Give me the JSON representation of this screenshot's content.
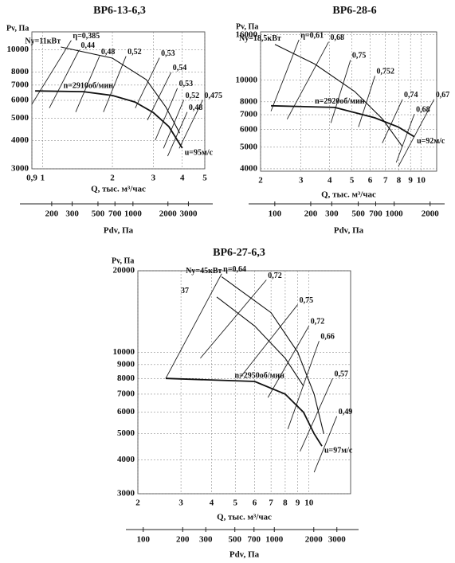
{
  "chart_data": [
    {
      "type": "line",
      "title": "ВР6-13-6,3",
      "ylabel": "Pv, Па",
      "xlabel": "Q, тыс. м³/час",
      "x2label": "Pdv, Па",
      "log": true,
      "grid": true,
      "xlim": [
        0.9,
        5
      ],
      "xticks": [
        {
          "value": 0.9,
          "label": "0,9"
        },
        1,
        2,
        3,
        4,
        5
      ],
      "ylim": [
        3000,
        12000
      ],
      "yticks": [
        3000,
        4000,
        5000,
        6000,
        7000,
        8000,
        10000
      ],
      "x2lim": [
        135,
        4150
      ],
      "x2ticks": [
        200,
        300,
        500,
        700,
        1000,
        2000,
        3000
      ],
      "series": [
        {
          "label": "Ny=11кВт",
          "x": [
            1.2,
            2.0,
            2.8,
            3.4,
            3.9
          ],
          "y": [
            10300,
            9200,
            7400,
            5600,
            4300
          ]
        },
        {
          "label": "n=2910об/мин",
          "end_label": "u=95м/с",
          "x": [
            0.93,
            1.5,
            2.0,
            2.5,
            3.0,
            3.5,
            4.0
          ],
          "y": [
            6600,
            6550,
            6300,
            5900,
            5300,
            4600,
            3700
          ]
        }
      ],
      "eta_lines": [
        {
          "label": "η=0,385",
          "x": [
            0.9,
            1.33
          ],
          "y": [
            5770,
            11000
          ]
        },
        {
          "label": "0,44",
          "x": [
            1.07,
            1.44
          ],
          "y": [
            5550,
            10000
          ]
        },
        {
          "label": "0,48",
          "x": [
            1.39,
            1.76
          ],
          "y": [
            5330,
            9380
          ]
        },
        {
          "label": "0,52",
          "x": [
            1.83,
            2.29
          ],
          "y": [
            5330,
            9380
          ]
        },
        {
          "label": "0,53",
          "x": [
            2.51,
            3.19
          ],
          "y": [
            5550,
            9230
          ]
        },
        {
          "label": "0,54",
          "x": [
            2.83,
            3.58
          ],
          "y": [
            4910,
            7970
          ]
        },
        {
          "label": "0,53",
          "x": [
            3.06,
            3.81
          ],
          "y": [
            4010,
            6780
          ]
        },
        {
          "label": "0,52",
          "x": [
            3.32,
            4.06
          ],
          "y": [
            3690,
            6020
          ]
        },
        {
          "label": "0,48",
          "x": [
            3.46,
            4.2
          ],
          "y": [
            3410,
            5330
          ]
        },
        {
          "label": "0,475",
          "x": [
            3.88,
            4.9
          ],
          "y": [
            3690,
            6020
          ]
        }
      ]
    },
    {
      "type": "line",
      "title": "ВР6-28-6",
      "ylabel": "Pv, Па",
      "xlabel": "Q, тыс. м³/час",
      "x2label": "Pdv, Па",
      "log": true,
      "grid": true,
      "xlim": [
        2,
        11.7
      ],
      "xticks": [
        2,
        3,
        4,
        5,
        6,
        7,
        8,
        9,
        10
      ],
      "ylim": [
        3900,
        16500
      ],
      "yticks": [
        4000,
        5000,
        6000,
        7000,
        8000,
        10000,
        16000
      ],
      "x2lim": [
        76,
        2270
      ],
      "x2ticks": [
        100,
        200,
        300,
        500,
        700,
        1000,
        2000
      ],
      "series": [
        {
          "label": "Ny=18,5кВт",
          "x": [
            2.31,
            3.44,
            5.14,
            6.8,
            8.3
          ],
          "y": [
            14500,
            11830,
            8900,
            6690,
            5030
          ]
        },
        {
          "label": "n=2920об/мин",
          "end_label": "u=92м/с",
          "x": [
            2.22,
            4.21,
            6.28,
            7.97,
            9.36
          ],
          "y": [
            7680,
            7550,
            6780,
            6160,
            5570
          ]
        }
      ],
      "eta_lines": [
        {
          "label": "η=0,61",
          "x": [
            2.22,
            2.94
          ],
          "y": [
            7260,
            15200
          ]
        },
        {
          "label": "0,68",
          "x": [
            2.61,
            3.96
          ],
          "y": [
            6680,
            14880
          ]
        },
        {
          "label": "0,75",
          "x": [
            4.05,
            4.93
          ],
          "y": [
            6430,
            12320
          ]
        },
        {
          "label": "0,752",
          "x": [
            5.34,
            6.3
          ],
          "y": [
            6160,
            10460
          ]
        },
        {
          "label": "0,74",
          "x": [
            6.78,
            8.3
          ],
          "y": [
            5220,
            8200
          ]
        },
        {
          "label": "0,68",
          "x": [
            7.8,
            9.36
          ],
          "y": [
            4270,
            7050
          ]
        },
        {
          "label": "0,67",
          "x": [
            7.97,
            11.4
          ],
          "y": [
            4100,
            8200
          ]
        }
      ]
    },
    {
      "type": "line",
      "title": "ВР6-27-6,3",
      "ylabel": "Pv, Па",
      "xlabel": "Q, тыс. м³/час",
      "x2label": "Pdv, Па",
      "log": true,
      "grid": true,
      "xlim": [
        2,
        14.8
      ],
      "xticks": [
        2,
        3,
        4,
        5,
        6,
        7,
        8,
        9,
        10
      ],
      "ylim": [
        3000,
        20000
      ],
      "yticks": [
        3000,
        4000,
        5000,
        6000,
        7000,
        8000,
        9000,
        10000,
        20000
      ],
      "x2lim": [
        91,
        3820
      ],
      "x2ticks": [
        100,
        200,
        300,
        500,
        700,
        1000,
        2000,
        3000
      ],
      "series": [
        {
          "label": "Ny=45кВт",
          "x": [
            4.4,
            7.0,
            9.0,
            10.5,
            11.5
          ],
          "y": [
            19000,
            14000,
            10000,
            7000,
            5000
          ]
        },
        {
          "label": "37",
          "x": [
            4.2,
            6.0,
            8.0,
            9.5
          ],
          "y": [
            16000,
            12500,
            9500,
            7500
          ]
        },
        {
          "label": "n=2950об/мин",
          "end_label": "u=97м/с",
          "x": [
            2.6,
            6.0,
            8.0,
            9.5,
            10.5,
            11.3
          ],
          "y": [
            8000,
            7800,
            7000,
            6000,
            5000,
            4500
          ]
        }
      ],
      "eta_lines": [
        {
          "label": "η=0,64",
          "x": [
            2.6,
            4.4
          ],
          "y": [
            8000,
            19500
          ]
        },
        {
          "label": "0,72",
          "x": [
            3.6,
            6.7
          ],
          "y": [
            9500,
            18500
          ]
        },
        {
          "label": "0,75",
          "x": [
            5.2,
            9.0
          ],
          "y": [
            8000,
            15000
          ]
        },
        {
          "label": "0,72",
          "x": [
            6.8,
            10
          ],
          "y": [
            6800,
            12500
          ]
        },
        {
          "label": "0,66",
          "x": [
            8.2,
            11
          ],
          "y": [
            5200,
            11000
          ]
        },
        {
          "label": "0,57",
          "x": [
            9.2,
            12.5
          ],
          "y": [
            4300,
            8000
          ]
        },
        {
          "label": "0,49",
          "x": [
            10.5,
            13
          ],
          "y": [
            3600,
            5800
          ]
        }
      ]
    }
  ]
}
